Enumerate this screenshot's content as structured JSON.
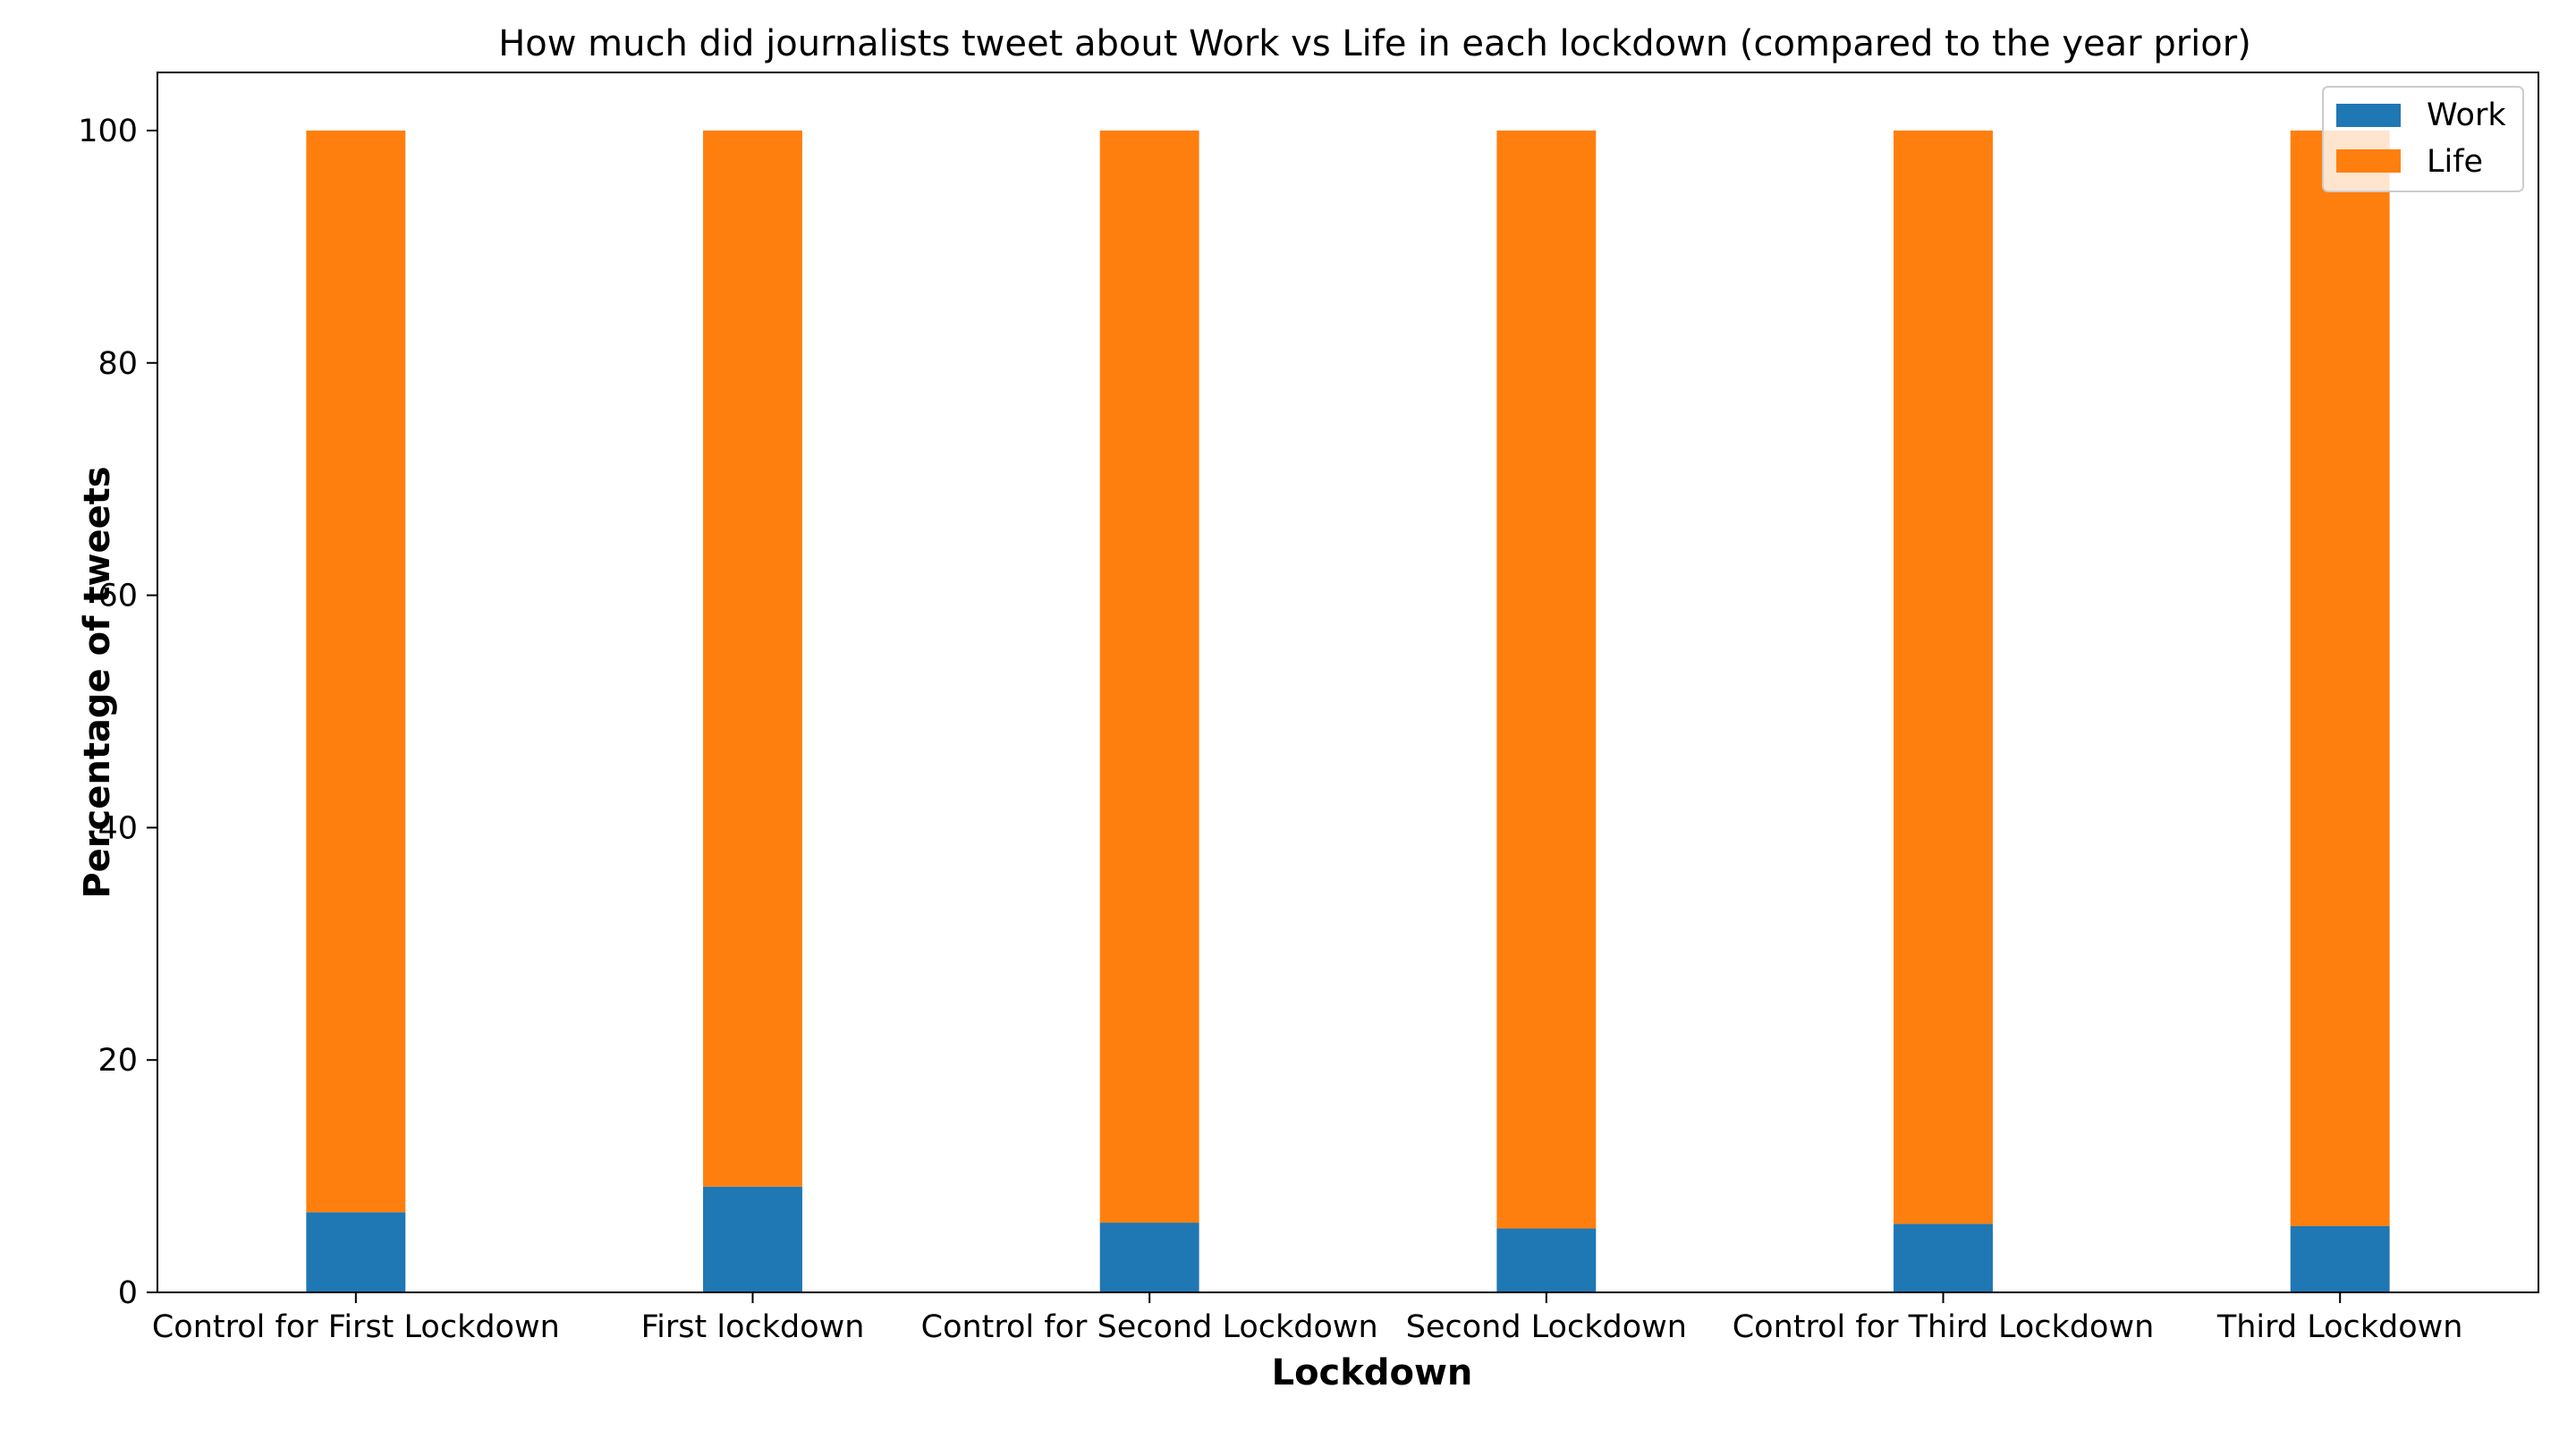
{
  "chart_data": {
    "type": "bar",
    "stacked": true,
    "title": "How much did journalists tweet about Work vs Life in each lockdown (compared to the year prior)",
    "xlabel": "Lockdown",
    "ylabel": "Percentage of tweets",
    "categories": [
      "Control for First Lockdown",
      "First lockdown",
      "Control for Second Lockdown",
      "Second Lockdown",
      "Control for Third Lockdown",
      "Third Lockdown"
    ],
    "series": [
      {
        "name": "Work",
        "color": "#1f77b4",
        "values": [
          6.9,
          9.1,
          6.0,
          5.5,
          5.9,
          5.7
        ]
      },
      {
        "name": "Life",
        "color": "#ff7f0e",
        "values": [
          93.1,
          90.9,
          94.0,
          94.5,
          94.1,
          94.3
        ]
      }
    ],
    "ylim": [
      0,
      105
    ],
    "yticks": [
      0,
      20,
      40,
      60,
      80,
      100
    ],
    "grid": false,
    "legend": "top-right"
  }
}
